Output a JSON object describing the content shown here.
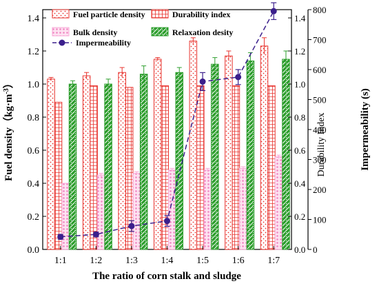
{
  "chart_data": {
    "type": "bar",
    "xlabel": "The ratio of corn stalk and sludge",
    "ylabel_left": "Fuel density（kg·m",
    "ylabel_left_exp": "-3",
    "ylabel_left_close": "）",
    "ylabel_right_inner": "Durability Index",
    "ylabel_right_outer": "Impermeability (s)",
    "categories": [
      "1:1",
      "1:2",
      "1:3",
      "1:4",
      "1:5",
      "1:6",
      "1:7"
    ],
    "ylim_left": [
      0,
      1.45
    ],
    "yticks_left": [
      "0.0",
      "0.2",
      "0.4",
      "0.6",
      "0.8",
      "1.0",
      "1.2",
      "1.4"
    ],
    "ylim_right_inner": [
      0,
      1.45
    ],
    "yticks_right_inner": [
      "0.0",
      "0.2",
      "0.4",
      "0.6",
      "0.8",
      "1.0",
      "1.2",
      "1.4"
    ],
    "ylim_right_outer": [
      0,
      800
    ],
    "yticks_right_outer": [
      "0",
      "100",
      "200",
      "300",
      "400",
      "500",
      "600",
      "700",
      "800"
    ],
    "series": [
      {
        "name": "Fuel particle density",
        "key": "fpd",
        "axis": "left",
        "color": "#e8332e",
        "values": [
          1.03,
          1.05,
          1.07,
          1.15,
          1.26,
          1.17,
          1.23
        ],
        "errors": [
          0.01,
          0.02,
          0.03,
          0.01,
          0.02,
          0.03,
          0.05
        ]
      },
      {
        "name": "Durability index",
        "key": "di",
        "axis": "right_inner",
        "color": "#e8332e",
        "values": [
          0.89,
          0.99,
          0.98,
          0.99,
          0.99,
          0.99,
          0.99
        ],
        "errors": [
          0,
          0,
          0,
          0,
          0,
          0,
          0
        ]
      },
      {
        "name": "Bulk density",
        "key": "bd",
        "axis": "left",
        "color": "#f9a6d6",
        "values": [
          0.4,
          0.45,
          0.46,
          0.48,
          0.48,
          0.49,
          0.56
        ],
        "errors": [
          0,
          0.01,
          0.01,
          0.01,
          0.01,
          0.01,
          0.01
        ]
      },
      {
        "name": "Relaxation desity",
        "key": "rd",
        "axis": "left",
        "color": "#2e9e2e",
        "values": [
          1.0,
          1.0,
          1.06,
          1.07,
          1.12,
          1.14,
          1.15
        ],
        "errors": [
          0.02,
          0.03,
          0.05,
          0.03,
          0.04,
          0.05,
          0.05
        ]
      },
      {
        "name": "Impermeability",
        "key": "imp",
        "axis": "right_outer",
        "color": "#3b1f8c",
        "values": [
          42,
          50,
          78,
          95,
          560,
          575,
          795
        ],
        "errors": [
          8,
          8,
          18,
          18,
          30,
          25,
          28
        ]
      }
    ],
    "legend_position": "top-left",
    "grid": false
  }
}
